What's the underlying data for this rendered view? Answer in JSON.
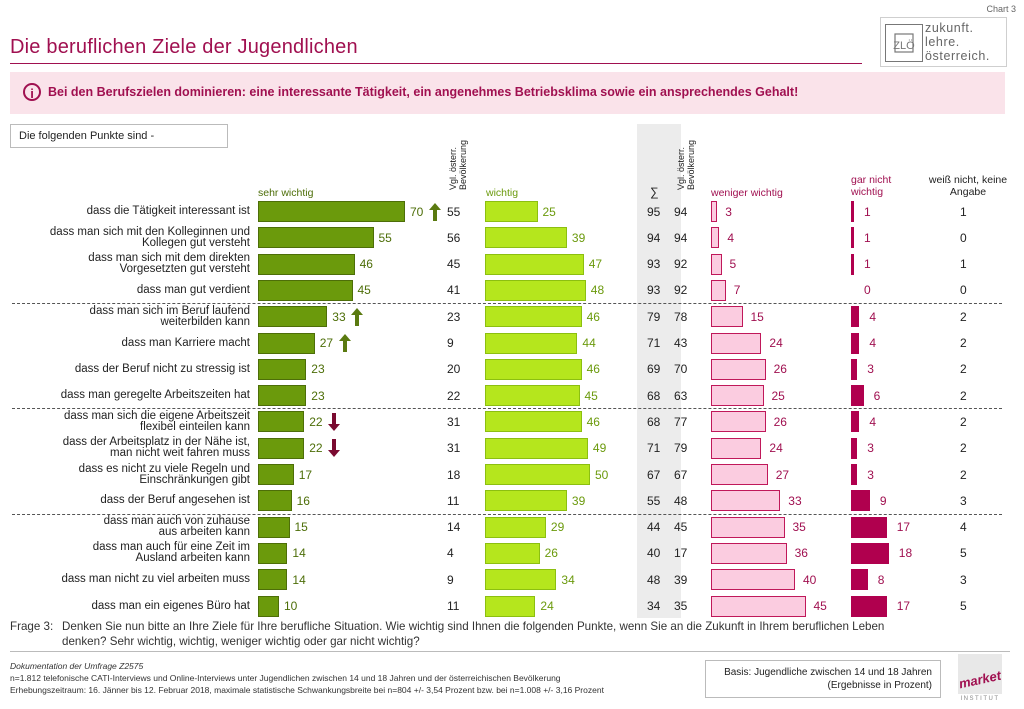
{
  "chart_label": "Chart 3",
  "title": "Die beruflichen Ziele der Jugendlichen",
  "logo": {
    "lines": [
      "zukunft.",
      "lehre.",
      "österreich."
    ]
  },
  "headline": "Bei den Berufszielen dominieren: eine interessante Tätigkeit, ein angenehmes Betriebsklima sowie ein ansprechendes Gehalt!",
  "question_box": "Die folgenden Punkte sind -",
  "columns": {
    "sehr_wichtig": "sehr wichtig",
    "vgl1": "Vgl. österr. Bevölkerung",
    "wichtig": "wichtig",
    "sum": "∑",
    "vgl2": "Vgl. österr. Bevölkerung",
    "weniger_wichtig": "weniger wichtig",
    "gar_nicht": "gar nicht wichtig",
    "weiss_nicht": "weiß nicht, keine Angabe"
  },
  "chart_data": {
    "type": "bar",
    "title": "Die beruflichen Ziele der Jugendlichen",
    "categories": [
      "dass die Tätigkeit interessant ist",
      "dass man sich mit den Kolleginnen und Kollegen gut versteht",
      "dass man sich mit dem direkten Vorgesetzten gut versteht",
      "dass man gut verdient",
      "dass man sich im Beruf laufend weiterbilden kann",
      "dass man Karriere macht",
      "dass der Beruf nicht zu stressig ist",
      "dass man geregelte Arbeitszeiten hat",
      "dass man sich die eigene Arbeitszeit flexibel einteilen kann",
      "dass der Arbeitsplatz in der Nähe ist, man nicht weit fahren muss",
      "dass es nicht zu viele Regeln und Einschränkungen gibt",
      "dass der Beruf angesehen ist",
      "dass man auch von zuhause aus arbeiten kann",
      "dass man auch für eine Zeit im Ausland arbeiten kann",
      "dass man nicht zu viel arbeiten muss",
      "dass man ein eigenes Büro hat"
    ],
    "label_lines": [
      [
        "dass die Tätigkeit interessant ist"
      ],
      [
        "dass man sich mit den Kolleginnen und",
        "Kollegen gut versteht"
      ],
      [
        "dass man sich mit dem direkten",
        "Vorgesetzten gut versteht"
      ],
      [
        "dass man gut verdient"
      ],
      [
        "dass man sich im Beruf laufend",
        "weiterbilden kann"
      ],
      [
        "dass man Karriere macht"
      ],
      [
        "dass der Beruf nicht zu stressig ist"
      ],
      [
        "dass man geregelte Arbeitszeiten hat"
      ],
      [
        "dass man sich die eigene Arbeitszeit",
        "flexibel einteilen kann"
      ],
      [
        "dass der Arbeitsplatz in der Nähe ist,",
        "man nicht weit fahren muss"
      ],
      [
        "dass es nicht zu viele Regeln und",
        "Einschränkungen gibt"
      ],
      [
        "dass der Beruf angesehen ist"
      ],
      [
        "dass man auch von zuhause",
        "aus arbeiten kann"
      ],
      [
        "dass man auch für eine Zeit im",
        "Ausland arbeiten kann"
      ],
      [
        "dass man nicht zu viel arbeiten muss"
      ],
      [
        "dass man ein eigenes Büro hat"
      ]
    ],
    "series": [
      {
        "name": "sehr wichtig",
        "color": "#6b9a0c",
        "values": [
          70,
          55,
          46,
          45,
          33,
          27,
          23,
          23,
          22,
          22,
          17,
          16,
          15,
          14,
          14,
          10
        ]
      },
      {
        "name": "wichtig",
        "color": "#b5e61d",
        "values": [
          25,
          39,
          47,
          48,
          46,
          44,
          46,
          45,
          46,
          49,
          50,
          39,
          29,
          26,
          34,
          24
        ]
      },
      {
        "name": "weniger wichtig",
        "color": "#fbcce0",
        "values": [
          3,
          4,
          5,
          7,
          15,
          24,
          26,
          25,
          26,
          24,
          27,
          33,
          35,
          36,
          40,
          45
        ]
      },
      {
        "name": "gar nicht wichtig",
        "color": "#b0004e",
        "values": [
          1,
          1,
          1,
          0,
          4,
          4,
          3,
          6,
          4,
          3,
          3,
          9,
          17,
          18,
          8,
          17
        ]
      },
      {
        "name": "weiß nicht, keine Angabe",
        "values": [
          1,
          0,
          1,
          0,
          2,
          2,
          2,
          2,
          2,
          2,
          2,
          3,
          4,
          5,
          3,
          5
        ]
      }
    ],
    "vgl_sehr_wichtig": [
      55,
      56,
      45,
      41,
      23,
      9,
      20,
      22,
      31,
      31,
      18,
      11,
      14,
      4,
      9,
      11
    ],
    "sum": [
      95,
      94,
      93,
      93,
      79,
      71,
      69,
      68,
      68,
      71,
      67,
      55,
      44,
      40,
      48,
      34
    ],
    "vgl_sum": [
      94,
      94,
      92,
      92,
      78,
      43,
      70,
      63,
      77,
      79,
      67,
      48,
      45,
      17,
      39,
      35
    ],
    "trend": [
      "up",
      "",
      "",
      "",
      "up",
      "up",
      "",
      "",
      "down",
      "down",
      "",
      "",
      "",
      "",
      "",
      ""
    ],
    "group_breaks_after": [
      3,
      7,
      11
    ]
  },
  "footnote": {
    "label": "Frage 3:",
    "lines": [
      "Denken Sie nun bitte an Ihre Ziele für Ihre berufliche Situation. Wie wichtig sind Ihnen die folgenden Punkte, wenn Sie an die Zukunft in Ihrem beruflichen Leben",
      "denken? Sehr wichtig, wichtig, weniger wichtig oder gar nicht wichtig?"
    ]
  },
  "documentation": {
    "title": "Dokumentation der Umfrage Z2575",
    "line1": "n=1.812 telefonische CATI-Interviews und Online-Interviews unter Jugendlichen zwischen 14 und 18 Jahren und der österreichischen Bevölkerung",
    "line2": "Erhebungszeitraum: 16. Jänner bis 12. Februar 2018, maximale statistische Schwankungsbreite bei n=804 +/- 3,54 Prozent bzw. bei n=1.008 +/- 3,16 Prozent"
  },
  "basis": {
    "line1": "Basis: Jugendliche zwischen 14 und 18 Jahren",
    "line2": "(Ergebnisse in Prozent)"
  },
  "market_logo": {
    "word": "market",
    "sub": "INSTITUT",
    "color": "#a01050"
  },
  "colors": {
    "accent": "#a01050",
    "arrow_up": "#5a7a10",
    "arrow_down": "#7a0a30"
  }
}
